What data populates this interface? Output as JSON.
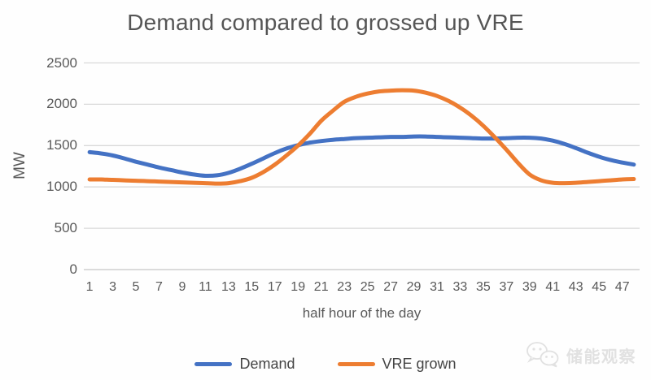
{
  "title": "Demand compared to grossed up VRE",
  "y_axis": {
    "label": "MW",
    "ticks": [
      "2500",
      "2000",
      "1500",
      "1000",
      "500",
      "0"
    ]
  },
  "x_axis": {
    "label": "half hour of the day",
    "ticks": [
      "1",
      "3",
      "5",
      "7",
      "9",
      "11",
      "13",
      "15",
      "17",
      "19",
      "21",
      "23",
      "25",
      "27",
      "29",
      "31",
      "33",
      "35",
      "37",
      "39",
      "41",
      "43",
      "45",
      "47"
    ]
  },
  "legend": [
    {
      "label": "Demand",
      "color": "#4472C4"
    },
    {
      "label": "VRE grown",
      "color": "#ED7D31"
    }
  ],
  "watermark": {
    "text": "储能观察",
    "icon": "wechat-icon"
  },
  "colors": {
    "demand": "#4472C4",
    "vre": "#ED7D31",
    "gridline": "#d9d9d9",
    "axis_line": "#c6c6c6",
    "tick_text": "#595959",
    "title_text": "#555555"
  },
  "chart_data": {
    "type": "line",
    "title": "Demand compared to grossed up VRE",
    "xlabel": "half hour of the day",
    "ylabel": "MW",
    "ylim": [
      0,
      2500
    ],
    "ytick_step": 500,
    "grid": "horizontal",
    "legend_position": "bottom",
    "x": [
      1,
      2,
      3,
      4,
      5,
      6,
      7,
      8,
      9,
      10,
      11,
      12,
      13,
      14,
      15,
      16,
      17,
      18,
      19,
      20,
      21,
      22,
      23,
      24,
      25,
      26,
      27,
      28,
      29,
      30,
      31,
      32,
      33,
      34,
      35,
      36,
      37,
      38,
      39,
      40,
      41,
      42,
      43,
      44,
      45,
      46,
      47,
      48
    ],
    "series": [
      {
        "name": "Demand",
        "color": "#4472C4",
        "values": [
          1420,
          1405,
          1380,
          1345,
          1305,
          1270,
          1235,
          1205,
          1175,
          1150,
          1135,
          1140,
          1170,
          1220,
          1280,
          1345,
          1410,
          1465,
          1505,
          1535,
          1555,
          1570,
          1580,
          1590,
          1595,
          1600,
          1605,
          1605,
          1610,
          1610,
          1605,
          1600,
          1595,
          1590,
          1585,
          1585,
          1590,
          1595,
          1595,
          1585,
          1560,
          1520,
          1470,
          1415,
          1365,
          1325,
          1295,
          1270
        ]
      },
      {
        "name": "VRE grown",
        "color": "#ED7D31",
        "values": [
          1090,
          1090,
          1085,
          1080,
          1075,
          1070,
          1065,
          1060,
          1055,
          1050,
          1045,
          1040,
          1045,
          1070,
          1110,
          1180,
          1270,
          1380,
          1500,
          1640,
          1800,
          1920,
          2030,
          2090,
          2130,
          2155,
          2165,
          2170,
          2165,
          2140,
          2100,
          2040,
          1960,
          1860,
          1740,
          1600,
          1450,
          1290,
          1150,
          1080,
          1050,
          1045,
          1050,
          1060,
          1070,
          1080,
          1090,
          1095
        ]
      }
    ]
  }
}
